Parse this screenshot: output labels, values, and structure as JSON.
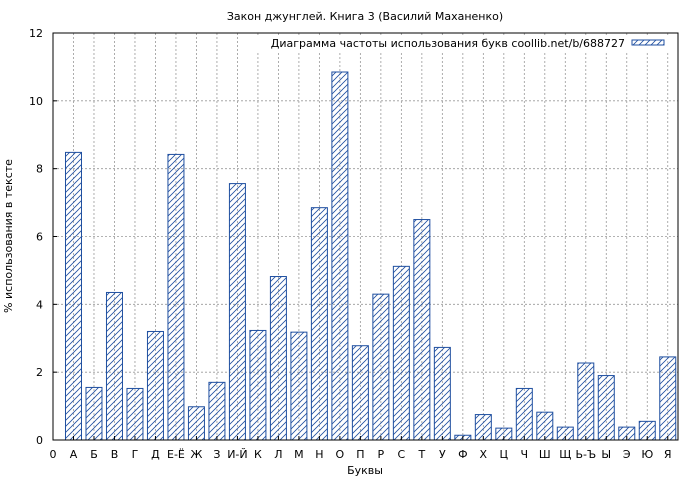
{
  "chart_data": {
    "type": "bar",
    "title": "Закон джунглей. Книга 3 (Василий Маханенко)",
    "xlabel": "Буквы",
    "ylabel": "% использования в тексте",
    "legend": {
      "label": "Диаграмма частоты использования букв coollib.net/b/688727",
      "position": "top-right"
    },
    "ylim": [
      0,
      12
    ],
    "yticks": [
      "0",
      "2",
      "4",
      "6",
      "8",
      "10",
      "12"
    ],
    "grid": true,
    "origin_label": "0",
    "categories": [
      "А",
      "Б",
      "В",
      "Г",
      "Д",
      "Е-Ё",
      "Ж",
      "З",
      "И-Й",
      "К",
      "Л",
      "М",
      "Н",
      "О",
      "П",
      "Р",
      "С",
      "Т",
      "У",
      "Ф",
      "Х",
      "Ц",
      "Ч",
      "Ш",
      "Щ",
      "Ь-Ъ",
      "Ы",
      "Э",
      "Ю",
      "Я"
    ],
    "values": [
      8.48,
      1.55,
      4.35,
      1.52,
      3.2,
      8.42,
      0.98,
      1.7,
      7.56,
      3.23,
      4.82,
      3.18,
      6.85,
      10.85,
      2.78,
      4.3,
      5.12,
      6.5,
      2.73,
      0.14,
      0.75,
      0.35,
      1.52,
      0.82,
      0.38,
      2.27,
      1.9,
      0.38,
      0.55,
      2.45
    ],
    "colors": {
      "bar_stroke": "#1f4fa0",
      "hatch": "#1f4fa0",
      "grid": "#999999"
    }
  }
}
